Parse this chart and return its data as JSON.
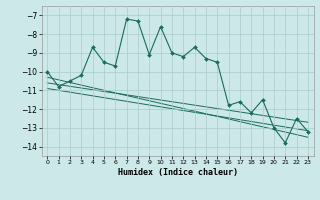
{
  "title": "",
  "xlabel": "Humidex (Indice chaleur)",
  "bg_color": "#cce8e8",
  "grid_color": "#aacccc",
  "line_color": "#1a6b5a",
  "xlim": [
    -0.5,
    23.5
  ],
  "ylim": [
    -14.5,
    -6.5
  ],
  "xticks": [
    0,
    1,
    2,
    3,
    4,
    5,
    6,
    7,
    8,
    9,
    10,
    11,
    12,
    13,
    14,
    15,
    16,
    17,
    18,
    19,
    20,
    21,
    22,
    23
  ],
  "yticks": [
    -7,
    -8,
    -9,
    -10,
    -11,
    -12,
    -13,
    -14
  ],
  "series1_x": [
    0,
    1,
    2,
    3,
    4,
    5,
    6,
    7,
    8,
    9,
    10,
    11,
    12,
    13,
    14,
    15,
    16,
    17,
    18,
    19,
    20,
    21,
    22,
    23
  ],
  "series1_y": [
    -10.0,
    -10.8,
    -10.5,
    -10.2,
    -8.7,
    -9.5,
    -9.7,
    -7.2,
    -7.3,
    -9.1,
    -7.6,
    -9.0,
    -9.2,
    -8.7,
    -9.3,
    -9.5,
    -11.8,
    -11.6,
    -12.2,
    -11.5,
    -13.0,
    -13.8,
    -12.5,
    -13.2
  ],
  "trend1_x": [
    0,
    23
  ],
  "trend1_y": [
    -10.3,
    -13.5
  ],
  "trend2_x": [
    0,
    23
  ],
  "trend2_y": [
    -10.6,
    -12.7
  ],
  "trend3_x": [
    0,
    23
  ],
  "trend3_y": [
    -10.9,
    -13.15
  ]
}
